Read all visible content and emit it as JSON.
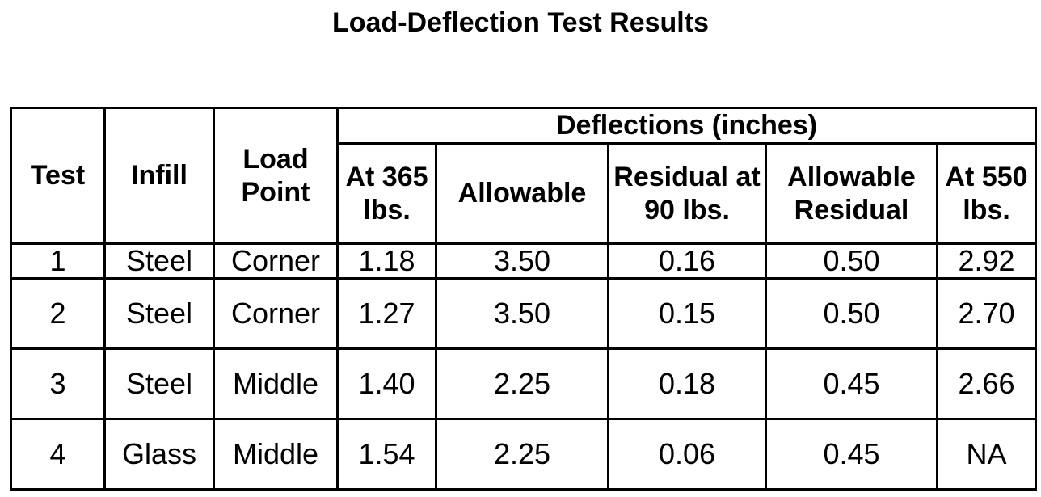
{
  "title": "Load-Deflection Test Results",
  "table": {
    "headers": {
      "test": "Test",
      "infill": "Infill",
      "load_point": "Load Point",
      "group": "Deflections (inches)",
      "at_365": "At 365 lbs.",
      "allowable": "Allowable",
      "residual_90": "Residual at 90 lbs.",
      "allowable_residual": "Allowable Residual",
      "at_550": "At 550 lbs."
    },
    "rows": [
      {
        "test": "1",
        "infill": "Steel",
        "load_point": "Corner",
        "at_365": "1.18",
        "allowable": "3.50",
        "residual_90": "0.16",
        "allowable_residual": "0.50",
        "at_550": "2.92"
      },
      {
        "test": "2",
        "infill": "Steel",
        "load_point": "Corner",
        "at_365": "1.27",
        "allowable": "3.50",
        "residual_90": "0.15",
        "allowable_residual": "0.50",
        "at_550": "2.70"
      },
      {
        "test": "3",
        "infill": "Steel",
        "load_point": "Middle",
        "at_365": "1.40",
        "allowable": "2.25",
        "residual_90": "0.18",
        "allowable_residual": "0.45",
        "at_550": "2.66"
      },
      {
        "test": "4",
        "infill": "Glass",
        "load_point": "Middle",
        "at_365": "1.54",
        "allowable": "2.25",
        "residual_90": "0.06",
        "allowable_residual": "0.45",
        "at_550": "NA"
      }
    ]
  }
}
